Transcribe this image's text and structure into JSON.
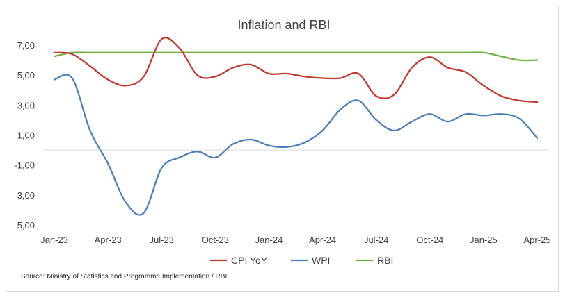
{
  "chart_data": {
    "type": "line",
    "title": "Inflation and RBI",
    "source": "Source: Ministry of Statistics and Programme Implementation / RBI",
    "ylim": [
      -5,
      7
    ],
    "y_ticks": [
      "7,00",
      "5,00",
      "3,00",
      "1,00",
      "-1,00",
      "-3,00",
      "-5,00"
    ],
    "y_tick_values": [
      7,
      5,
      3,
      1,
      -1,
      -3,
      -5
    ],
    "x": [
      "Jan-23",
      "Feb-23",
      "Mar-23",
      "Apr-23",
      "May-23",
      "Jun-23",
      "Jul-23",
      "Aug-23",
      "Sep-23",
      "Oct-23",
      "Nov-23",
      "Dec-23",
      "Jan-24",
      "Feb-24",
      "Mar-24",
      "Apr-24",
      "May-24",
      "Jun-24",
      "Jul-24",
      "Aug-24",
      "Sep-24",
      "Oct-24",
      "Nov-24",
      "Dec-24",
      "Jan-25",
      "Feb-25",
      "Mar-25",
      "Apr-25"
    ],
    "x_tick_labels": [
      "Jan-23",
      "Apr-23",
      "Jul-23",
      "Oct-23",
      "Jan-24",
      "Apr-24",
      "Jul-24",
      "Oct-24",
      "Jan-25",
      "Apr-25"
    ],
    "x_tick_indices": [
      0,
      3,
      6,
      9,
      12,
      15,
      18,
      21,
      24,
      27
    ],
    "grid": false,
    "legend_position": "bottom",
    "series": [
      {
        "name": "CPI YoY",
        "color": "#C0392B",
        "values": [
          6.5,
          6.4,
          5.6,
          4.7,
          4.3,
          4.9,
          7.4,
          6.8,
          5.0,
          4.9,
          5.5,
          5.7,
          5.1,
          5.1,
          4.9,
          4.8,
          4.8,
          5.1,
          3.6,
          3.7,
          5.5,
          6.2,
          5.5,
          5.2,
          4.3,
          3.6,
          3.3,
          3.2
        ]
      },
      {
        "name": "WPI",
        "color": "#4A7EBB",
        "values": [
          4.7,
          4.8,
          1.3,
          -0.9,
          -3.5,
          -4.2,
          -1.2,
          -0.5,
          -0.1,
          -0.5,
          0.4,
          0.7,
          0.3,
          0.2,
          0.5,
          1.3,
          2.7,
          3.3,
          2.0,
          1.3,
          1.9,
          2.4,
          1.9,
          2.4,
          2.3,
          2.4,
          2.1,
          0.8
        ]
      },
      {
        "name": "RBI",
        "color": "#70AD47",
        "values": [
          6.25,
          6.5,
          6.5,
          6.5,
          6.5,
          6.5,
          6.5,
          6.5,
          6.5,
          6.5,
          6.5,
          6.5,
          6.5,
          6.5,
          6.5,
          6.5,
          6.5,
          6.5,
          6.5,
          6.5,
          6.5,
          6.5,
          6.5,
          6.5,
          6.5,
          6.25,
          6.0,
          6.0
        ]
      }
    ]
  }
}
